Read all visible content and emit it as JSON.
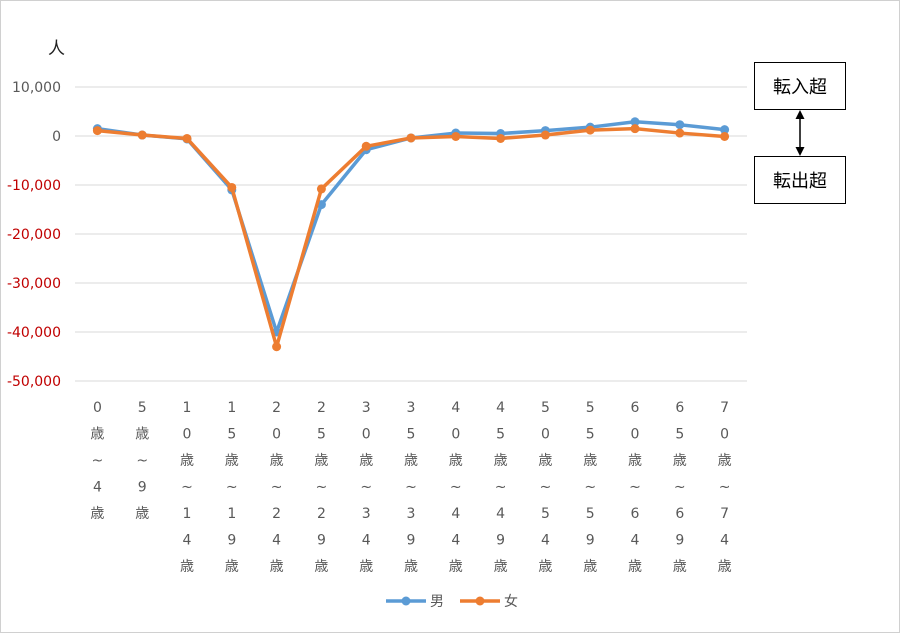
{
  "annotations": {
    "unit": "人",
    "in_label": "転入超",
    "out_label": "転出超"
  },
  "chart_data": {
    "type": "line",
    "categories": [
      "0歳~4歳",
      "5歳~9歳",
      "10歳~14歳",
      "15歳~19歳",
      "20歳~24歳",
      "25歳~29歳",
      "30歳~34歳",
      "35歳~39歳",
      "40歳~44歳",
      "45歳~49歳",
      "50歳~54歳",
      "55歳~59歳",
      "60歳~64歳",
      "65歳~69歳",
      "70歳~74歳"
    ],
    "category_labels_vertical": [
      [
        "0",
        "歳",
        "~",
        "4",
        "歳"
      ],
      [
        "5",
        "歳",
        "~",
        "9",
        "歳"
      ],
      [
        "1",
        "0",
        "歳",
        "~",
        "1",
        "4",
        "歳"
      ],
      [
        "1",
        "5",
        "歳",
        "~",
        "1",
        "9",
        "歳"
      ],
      [
        "2",
        "0",
        "歳",
        "~",
        "2",
        "4",
        "歳"
      ],
      [
        "2",
        "5",
        "歳",
        "~",
        "2",
        "9",
        "歳"
      ],
      [
        "3",
        "0",
        "歳",
        "~",
        "3",
        "4",
        "歳"
      ],
      [
        "3",
        "5",
        "歳",
        "~",
        "3",
        "9",
        "歳"
      ],
      [
        "4",
        "0",
        "歳",
        "~",
        "4",
        "4",
        "歳"
      ],
      [
        "4",
        "5",
        "歳",
        "~",
        "4",
        "9",
        "歳"
      ],
      [
        "5",
        "0",
        "歳",
        "~",
        "5",
        "4",
        "歳"
      ],
      [
        "5",
        "5",
        "歳",
        "~",
        "5",
        "9",
        "歳"
      ],
      [
        "6",
        "0",
        "歳",
        "~",
        "6",
        "4",
        "歳"
      ],
      [
        "6",
        "5",
        "歳",
        "~",
        "6",
        "9",
        "歳"
      ],
      [
        "7",
        "0",
        "歳",
        "~",
        "7",
        "4",
        "歳"
      ]
    ],
    "series": [
      {
        "name": "男",
        "color": "#5B9BD5",
        "values": [
          1500,
          200,
          -600,
          -11000,
          -40000,
          -14000,
          -2800,
          -400,
          600,
          500,
          1100,
          1800,
          2900,
          2300,
          1300
        ]
      },
      {
        "name": "女",
        "color": "#ED7D31",
        "values": [
          1100,
          200,
          -500,
          -10500,
          -43000,
          -10800,
          -2100,
          -400,
          -100,
          -500,
          200,
          1200,
          1500,
          600,
          -100
        ]
      }
    ],
    "ylim": [
      -50000,
      10000
    ],
    "yticks": [
      10000,
      0,
      -10000,
      -20000,
      -30000,
      -40000,
      -50000
    ],
    "ytick_labels": [
      "10,000",
      "0",
      "-10,000",
      "-20,000",
      "-30,000",
      "-40,000",
      "-50,000"
    ],
    "positive_tick_color": "#595959",
    "negative_tick_color": "#C00000",
    "grid": true,
    "legend_position": "bottom"
  }
}
